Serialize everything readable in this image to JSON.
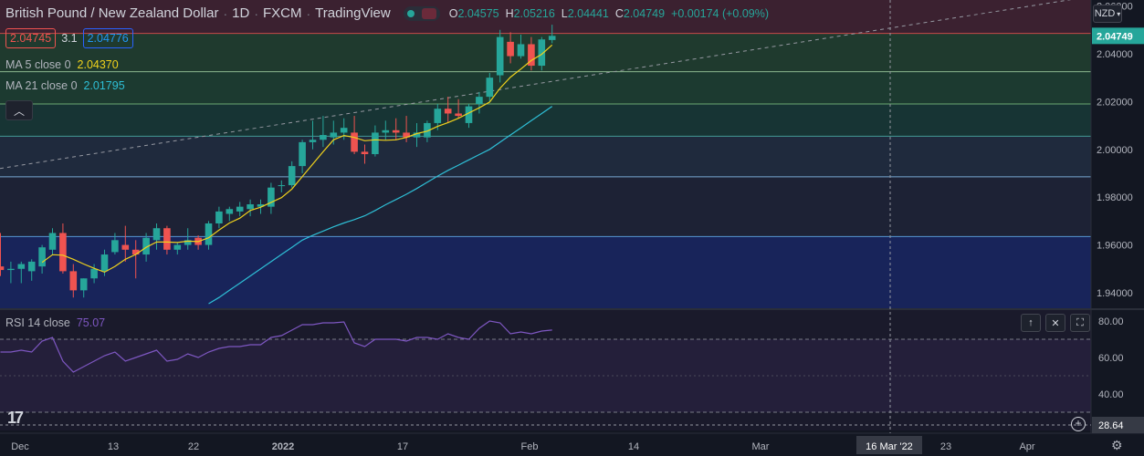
{
  "header": {
    "symbol": "British Pound / New Zealand Dollar",
    "interval": "1D",
    "exchange": "FXCM",
    "source": "TradingView",
    "open_label": "O",
    "open": "2.04575",
    "high_label": "H",
    "high": "2.05216",
    "low_label": "L",
    "low": "2.04441",
    "close_label": "C",
    "close": "2.04749",
    "change": "+0.00174 (+0.09%)"
  },
  "quote": {
    "sell": "2.04745",
    "spread": "3.1",
    "buy": "2.04776"
  },
  "indicators": {
    "ma5_label": "MA 5 close 0",
    "ma5_value": "2.04370",
    "ma21_label": "MA 21 close 0",
    "ma21_value": "2.01795",
    "rsi_label": "RSI 14 close",
    "rsi_value": "75.07"
  },
  "currency": "NZD",
  "crosshair": {
    "date_label": "16 Mar '22",
    "rsi_label": "28.64"
  },
  "colors": {
    "up": "#26a69a",
    "down": "#ef5350",
    "ma5": "#f0d21c",
    "ma21": "#2ebfd6",
    "rsi": "#7e57c2",
    "price_tag": "#26a69a"
  },
  "chart_data": [
    {
      "type": "candlestick",
      "title": "British Pound / New Zealand Dollar · 1D · FXCM",
      "y_axis_ticks": [
        "2.06000",
        "2.04000",
        "2.02000",
        "2.00000",
        "1.98000",
        "1.96000",
        "1.94000"
      ],
      "ylim": [
        1.9335,
        2.0625
      ],
      "x_axis_ticks": [
        "Dec",
        "13",
        "22",
        "2022",
        "17",
        "Feb",
        "14",
        "Mar",
        "23",
        "Apr"
      ],
      "last_price_label": "2.04749",
      "candles": [
        {
          "o": 1.951,
          "h": 1.965,
          "l": 1.947,
          "c": 1.9495
        },
        {
          "o": 1.9495,
          "h": 1.953,
          "l": 1.944,
          "c": 1.95
        },
        {
          "o": 1.95,
          "h": 1.953,
          "l": 1.944,
          "c": 1.952
        },
        {
          "o": 1.949,
          "h": 1.954,
          "l": 1.945,
          "c": 1.953
        },
        {
          "o": 1.951,
          "h": 1.96,
          "l": 1.948,
          "c": 1.959
        },
        {
          "o": 1.958,
          "h": 1.967,
          "l": 1.956,
          "c": 1.965
        },
        {
          "o": 1.965,
          "h": 1.969,
          "l": 1.948,
          "c": 1.949
        },
        {
          "o": 1.949,
          "h": 1.952,
          "l": 1.938,
          "c": 1.941
        },
        {
          "o": 1.941,
          "h": 1.946,
          "l": 1.938,
          "c": 1.946
        },
        {
          "o": 1.946,
          "h": 1.952,
          "l": 1.944,
          "c": 1.95
        },
        {
          "o": 1.949,
          "h": 1.958,
          "l": 1.947,
          "c": 1.956
        },
        {
          "o": 1.957,
          "h": 1.965,
          "l": 1.956,
          "c": 1.962
        },
        {
          "o": 1.96,
          "h": 1.968,
          "l": 1.953,
          "c": 1.958
        },
        {
          "o": 1.958,
          "h": 1.962,
          "l": 1.946,
          "c": 1.956
        },
        {
          "o": 1.956,
          "h": 1.965,
          "l": 1.953,
          "c": 1.963
        },
        {
          "o": 1.962,
          "h": 1.969,
          "l": 1.958,
          "c": 1.967
        },
        {
          "o": 1.967,
          "h": 1.968,
          "l": 1.956,
          "c": 1.958
        },
        {
          "o": 1.958,
          "h": 1.961,
          "l": 1.956,
          "c": 1.96
        },
        {
          "o": 1.96,
          "h": 1.967,
          "l": 1.958,
          "c": 1.962
        },
        {
          "o": 1.963,
          "h": 1.964,
          "l": 1.958,
          "c": 1.96
        },
        {
          "o": 1.96,
          "h": 1.97,
          "l": 1.958,
          "c": 1.969
        },
        {
          "o": 1.969,
          "h": 1.976,
          "l": 1.967,
          "c": 1.974
        },
        {
          "o": 1.973,
          "h": 1.976,
          "l": 1.97,
          "c": 1.975
        },
        {
          "o": 1.974,
          "h": 1.978,
          "l": 1.972,
          "c": 1.976
        },
        {
          "o": 1.975,
          "h": 1.979,
          "l": 1.972,
          "c": 1.977
        },
        {
          "o": 1.976,
          "h": 1.979,
          "l": 1.973,
          "c": 1.977
        },
        {
          "o": 1.976,
          "h": 1.986,
          "l": 1.973,
          "c": 1.984
        },
        {
          "o": 1.985,
          "h": 1.987,
          "l": 1.982,
          "c": 1.985
        },
        {
          "o": 1.985,
          "h": 1.995,
          "l": 1.984,
          "c": 1.993
        },
        {
          "o": 1.993,
          "h": 2.004,
          "l": 1.99,
          "c": 2.003
        },
        {
          "o": 2.003,
          "h": 2.012,
          "l": 2.0,
          "c": 2.004
        },
        {
          "o": 2.004,
          "h": 2.014,
          "l": 2.001,
          "c": 2.006
        },
        {
          "o": 2.005,
          "h": 2.012,
          "l": 2.002,
          "c": 2.007
        },
        {
          "o": 2.007,
          "h": 2.013,
          "l": 2.004,
          "c": 2.009
        },
        {
          "o": 2.007,
          "h": 2.014,
          "l": 1.998,
          "c": 1.999
        },
        {
          "o": 1.999,
          "h": 2.002,
          "l": 1.994,
          "c": 1.998
        },
        {
          "o": 1.998,
          "h": 2.01,
          "l": 1.997,
          "c": 2.007
        },
        {
          "o": 2.007,
          "h": 2.012,
          "l": 2.004,
          "c": 2.008
        },
        {
          "o": 2.008,
          "h": 2.013,
          "l": 2.004,
          "c": 2.007
        },
        {
          "o": 2.007,
          "h": 2.014,
          "l": 2.003,
          "c": 2.005
        },
        {
          "o": 2.005,
          "h": 2.011,
          "l": 2.001,
          "c": 2.007
        },
        {
          "o": 2.005,
          "h": 2.012,
          "l": 2.003,
          "c": 2.011
        },
        {
          "o": 2.011,
          "h": 2.019,
          "l": 2.008,
          "c": 2.017
        },
        {
          "o": 2.017,
          "h": 2.022,
          "l": 2.011,
          "c": 2.015
        },
        {
          "o": 2.015,
          "h": 2.021,
          "l": 2.013,
          "c": 2.014
        },
        {
          "o": 2.011,
          "h": 2.019,
          "l": 2.009,
          "c": 2.018
        },
        {
          "o": 2.019,
          "h": 2.024,
          "l": 2.015,
          "c": 2.022
        },
        {
          "o": 2.022,
          "h": 2.032,
          "l": 2.02,
          "c": 2.03
        },
        {
          "o": 2.031,
          "h": 2.05,
          "l": 2.028,
          "c": 2.047
        },
        {
          "o": 2.045,
          "h": 2.049,
          "l": 2.036,
          "c": 2.039
        },
        {
          "o": 2.039,
          "h": 2.048,
          "l": 2.038,
          "c": 2.044
        },
        {
          "o": 2.044,
          "h": 2.047,
          "l": 2.033,
          "c": 2.035
        },
        {
          "o": 2.035,
          "h": 2.047,
          "l": 2.033,
          "c": 2.046
        },
        {
          "o": 2.04575,
          "h": 2.05216,
          "l": 2.04441,
          "c": 2.04749
        }
      ],
      "series": [
        {
          "name": "MA 5 close 0",
          "values": [
            null,
            null,
            null,
            null,
            1.9527,
            1.9559,
            1.9557,
            1.954,
            1.952,
            1.9502,
            1.9486,
            1.951,
            1.954,
            1.956,
            1.959,
            1.9612,
            1.9612,
            1.961,
            1.9616,
            1.9614,
            1.963,
            1.9662,
            1.9692,
            1.9712,
            1.9744,
            1.9758,
            1.9778,
            1.9798,
            1.9834,
            1.9886,
            1.9938,
            1.999,
            2.004,
            2.0058,
            2.005,
            2.0036,
            2.004,
            2.0038,
            2.004,
            2.005,
            2.0066,
            2.0076,
            2.0096,
            2.0112,
            2.013,
            2.0152,
            2.0174,
            2.0198,
            2.0256,
            2.0302,
            2.0336,
            2.0372,
            2.0398,
            2.0437
          ]
        },
        {
          "name": "MA 21 close 0",
          "values": [
            null,
            null,
            null,
            null,
            null,
            null,
            null,
            null,
            null,
            null,
            null,
            null,
            null,
            null,
            null,
            null,
            null,
            null,
            null,
            null,
            1.9354,
            1.938,
            1.941,
            1.944,
            1.947,
            1.95,
            1.953,
            1.956,
            1.959,
            1.962,
            1.964,
            1.9658,
            1.9676,
            1.9692,
            1.9706,
            1.9722,
            1.9744,
            1.9768,
            1.979,
            1.9812,
            1.9836,
            1.9862,
            1.9888,
            1.9912,
            1.9934,
            1.9956,
            1.9978,
            2.0,
            2.003,
            2.006,
            2.009,
            2.012,
            2.015,
            2.018
          ]
        }
      ],
      "levels": [
        2.0485,
        2.0325,
        2.019,
        2.0055,
        1.9885,
        1.9635
      ]
    },
    {
      "type": "line",
      "title": "RSI 14 close",
      "y_axis_ticks": [
        "80.00",
        "60.00",
        "40.00"
      ],
      "ylim": [
        20,
        86
      ],
      "series": [
        {
          "name": "RSI 14 close",
          "values": [
            63,
            63,
            64,
            63,
            69,
            71,
            58,
            52,
            55,
            58,
            61,
            63,
            58,
            60,
            62,
            64,
            58,
            59,
            62,
            60,
            63,
            65,
            66,
            66,
            67,
            67,
            71,
            72,
            75,
            78,
            78,
            79,
            79,
            79.5,
            68,
            66,
            70,
            70,
            70,
            69,
            71,
            71,
            70,
            73,
            71,
            70,
            76,
            80,
            79,
            73,
            74,
            73,
            74.5,
            75.07
          ]
        }
      ],
      "bands": [
        70,
        30
      ]
    }
  ]
}
